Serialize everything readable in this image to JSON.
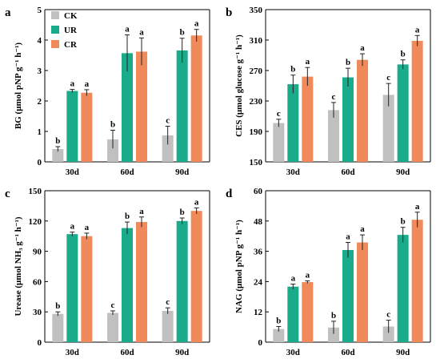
{
  "figure": {
    "legend": [
      {
        "name": "CK",
        "color": "#c0c0c0"
      },
      {
        "name": "UR",
        "color": "#1aab8a"
      },
      {
        "name": "CR",
        "color": "#f08a5b"
      }
    ]
  },
  "chart_data": [
    {
      "type": "bar",
      "panel": "a",
      "categories": [
        "30d",
        "60d",
        "90d"
      ],
      "ylabel": "BG (μmol pNP g⁻¹ h⁻¹)",
      "ylim": [
        0,
        5
      ],
      "yticks": [
        0,
        1,
        2,
        3,
        4,
        5
      ],
      "series": [
        {
          "name": "CK",
          "values": [
            0.42,
            0.74,
            0.87
          ],
          "errors": [
            0.08,
            0.3,
            0.3
          ],
          "sig": [
            "b",
            "b",
            "c"
          ]
        },
        {
          "name": "UR",
          "values": [
            2.33,
            3.57,
            3.66
          ],
          "errors": [
            0.05,
            0.6,
            0.4
          ],
          "sig": [
            "a",
            "a",
            "b"
          ]
        },
        {
          "name": "CR",
          "values": [
            2.27,
            3.62,
            4.15
          ],
          "errors": [
            0.1,
            0.45,
            0.2
          ],
          "sig": [
            "a",
            "a",
            "a"
          ]
        }
      ]
    },
    {
      "type": "bar",
      "panel": "b",
      "categories": [
        "30d",
        "60d",
        "90d"
      ],
      "ylabel": "CES (μmol glucose g⁻¹ h⁻¹)",
      "ylim": [
        150,
        350
      ],
      "yticks": [
        150,
        190,
        230,
        270,
        310,
        350
      ],
      "series": [
        {
          "name": "CK",
          "values": [
            201,
            218,
            238
          ],
          "errors": [
            5,
            10,
            15
          ],
          "sig": [
            "c",
            "c",
            "c"
          ]
        },
        {
          "name": "UR",
          "values": [
            252,
            261,
            278
          ],
          "errors": [
            12,
            12,
            6
          ],
          "sig": [
            "b",
            "b",
            "b"
          ]
        },
        {
          "name": "CR",
          "values": [
            262,
            284,
            309
          ],
          "errors": [
            12,
            8,
            7
          ],
          "sig": [
            "a",
            "a",
            "a"
          ]
        }
      ]
    },
    {
      "type": "bar",
      "panel": "c",
      "categories": [
        "30d",
        "60d",
        "90d"
      ],
      "ylabel": "Urease (μmol NH₃ g⁻¹ h⁻¹)",
      "ylim": [
        0,
        150
      ],
      "yticks": [
        0,
        30,
        60,
        90,
        120,
        150
      ],
      "series": [
        {
          "name": "CK",
          "values": [
            28,
            29,
            31
          ],
          "errors": [
            2,
            2,
            3
          ],
          "sig": [
            "b",
            "c",
            "c"
          ]
        },
        {
          "name": "UR",
          "values": [
            107,
            113,
            120
          ],
          "errors": [
            2,
            6,
            3
          ],
          "sig": [
            "a",
            "b",
            "b"
          ]
        },
        {
          "name": "CR",
          "values": [
            105,
            119,
            130
          ],
          "errors": [
            3,
            5,
            3
          ],
          "sig": [
            "a",
            "a",
            "a"
          ]
        }
      ]
    },
    {
      "type": "bar",
      "panel": "d",
      "categories": [
        "30d",
        "60d",
        "90d"
      ],
      "ylabel": "NAG (μmol pNP g⁻¹ h⁻¹)",
      "ylim": [
        0,
        60
      ],
      "yticks": [
        0,
        12,
        24,
        36,
        48,
        60
      ],
      "series": [
        {
          "name": "CK",
          "values": [
            5.2,
            5.8,
            6.2
          ],
          "errors": [
            1,
            2.5,
            2.5
          ],
          "sig": [
            "b",
            "b",
            "c"
          ]
        },
        {
          "name": "UR",
          "values": [
            22,
            36.5,
            42.5
          ],
          "errors": [
            1,
            3,
            3
          ],
          "sig": [
            "a",
            "a",
            "b"
          ]
        },
        {
          "name": "CR",
          "values": [
            23.8,
            39.5,
            48.5
          ],
          "errors": [
            0.5,
            3,
            3
          ],
          "sig": [
            "a",
            "a",
            "a"
          ]
        }
      ]
    }
  ]
}
